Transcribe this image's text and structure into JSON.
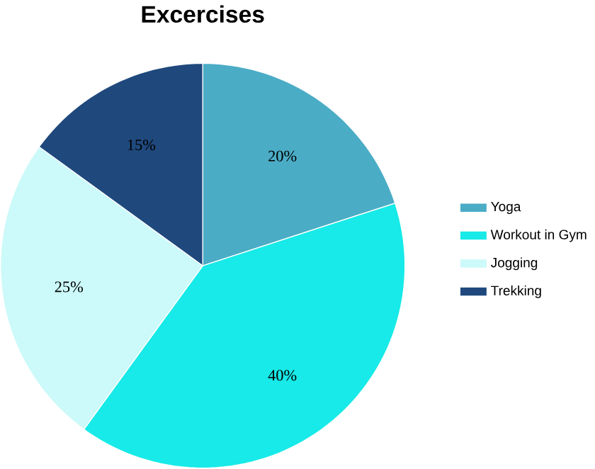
{
  "chart_data": {
    "type": "pie",
    "title": "Excercises",
    "categories": [
      "Yoga",
      "Workout in Gym",
      "Jogging",
      "Trekking"
    ],
    "values": [
      20,
      40,
      25,
      15
    ],
    "value_labels": [
      "20%",
      "40%",
      "25%",
      "15%"
    ],
    "colors": [
      "#4bacc6",
      "#17eae8",
      "#ccf9f9",
      "#1f497d"
    ],
    "legend": "right"
  }
}
